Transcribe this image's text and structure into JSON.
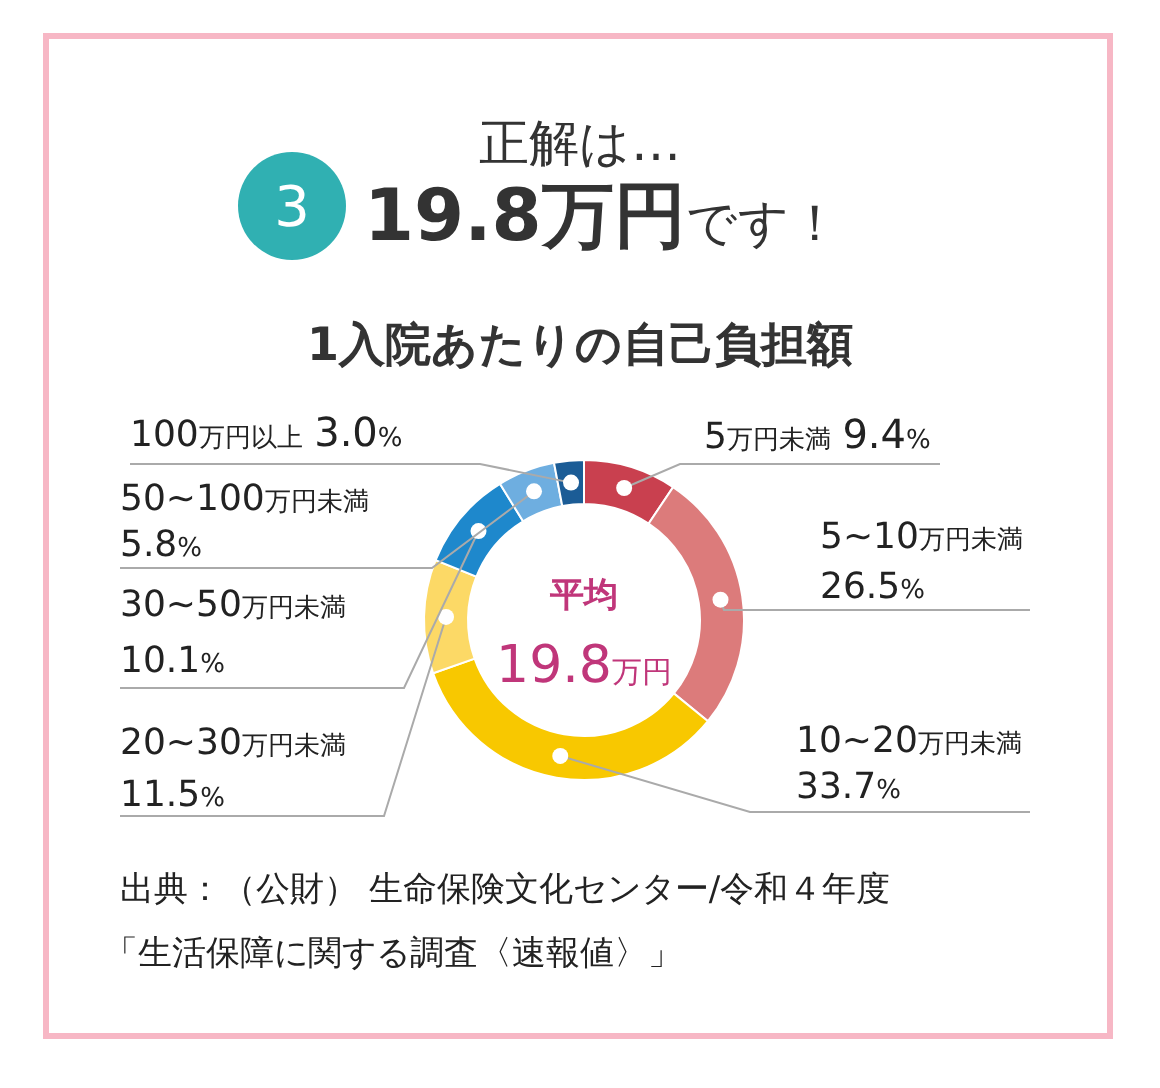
{
  "chart_data": {
    "type": "donut",
    "title": "1入院あたりの自己負担額",
    "categories": [
      "5万円未満",
      "5~10万円未満",
      "10~20万円未満",
      "20~30万円未満",
      "30~50万円未満",
      "50~100万円未満",
      "100万円以上"
    ],
    "values": [
      9.4,
      26.5,
      33.7,
      11.5,
      10.1,
      5.8,
      3.0
    ],
    "value_labels": [
      "9.4%",
      "26.5%",
      "33.7%",
      "11.5%",
      "10.1%",
      "5.8%",
      "3.0%"
    ],
    "colors": [
      "#c9404f",
      "#dc7b7b",
      "#f8c800",
      "#fcd966",
      "#1e88cc",
      "#6eaee0",
      "#1b5c96"
    ],
    "annotations": [
      "正解は…",
      "3",
      "19.8万円です！",
      "平均",
      "19.8万円",
      "出典：（公財） 生命保険文化センター/令和４年度",
      "「生活保障に関する調査〈速報値〉」"
    ]
  }
}
